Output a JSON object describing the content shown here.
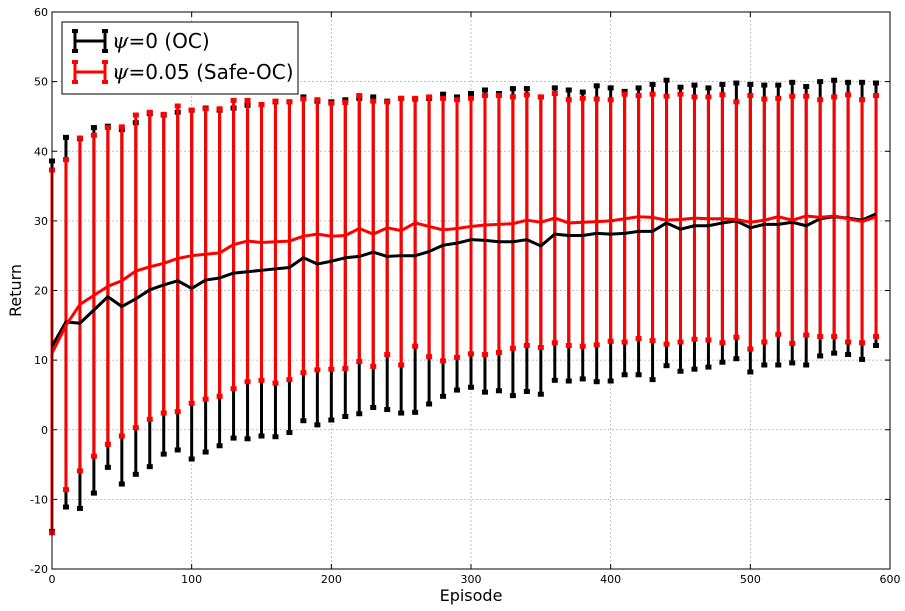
{
  "chart_data": {
    "type": "line",
    "xlabel": "Episode",
    "ylabel": "Return",
    "xlim": [
      0,
      600
    ],
    "ylim": [
      -20,
      60
    ],
    "x_ticks": [
      "0",
      "100",
      "200",
      "300",
      "400",
      "500",
      "600"
    ],
    "y_ticks": [
      "-20",
      "-10",
      "0",
      "10",
      "20",
      "30",
      "40",
      "50",
      "60"
    ],
    "grid": true,
    "legend_position": "top-left",
    "x": [
      0,
      10,
      20,
      30,
      40,
      50,
      60,
      70,
      80,
      90,
      100,
      110,
      120,
      130,
      140,
      150,
      160,
      170,
      180,
      190,
      200,
      210,
      220,
      230,
      240,
      250,
      260,
      270,
      280,
      290,
      300,
      310,
      320,
      330,
      340,
      350,
      360,
      370,
      380,
      390,
      400,
      410,
      420,
      430,
      440,
      450,
      460,
      470,
      480,
      490,
      500,
      510,
      520,
      530,
      540,
      550,
      560,
      570,
      580,
      590
    ],
    "series": [
      {
        "name_symbol": "ψ",
        "name": "=0 (OC)",
        "color": "#000000",
        "mean": [
          12.0,
          15.5,
          15.3,
          17.2,
          19.1,
          17.7,
          18.8,
          20.1,
          20.8,
          21.4,
          20.3,
          21.5,
          21.8,
          22.5,
          22.7,
          22.9,
          23.1,
          23.3,
          24.7,
          23.8,
          24.2,
          24.7,
          24.9,
          25.5,
          24.9,
          25.0,
          25.0,
          25.6,
          26.5,
          26.8,
          27.3,
          27.2,
          27.0,
          27.0,
          27.3,
          26.4,
          28.1,
          27.9,
          27.9,
          28.2,
          28.1,
          28.2,
          28.5,
          28.5,
          29.7,
          28.8,
          29.3,
          29.3,
          29.7,
          30.0,
          29.0,
          29.5,
          29.5,
          29.8,
          29.3,
          30.3,
          30.6,
          30.4,
          30.1,
          31.0
        ],
        "upper": [
          38.6,
          42.0,
          41.8,
          43.4,
          43.6,
          43.1,
          44.1,
          45.4,
          45.2,
          45.6,
          45.9,
          46.2,
          45.9,
          46.2,
          46.6,
          46.7,
          47.1,
          47.1,
          47.8,
          47.2,
          47.1,
          47.4,
          47.6,
          47.8,
          47.2,
          47.6,
          47.5,
          47.6,
          48.2,
          47.8,
          48.3,
          48.8,
          48.3,
          49.0,
          49.0,
          47.8,
          49.1,
          48.8,
          48.5,
          49.4,
          49.1,
          48.6,
          49.1,
          49.6,
          50.2,
          49.2,
          49.5,
          49.1,
          49.6,
          49.8,
          49.6,
          49.5,
          49.5,
          49.9,
          49.3,
          50.0,
          50.2,
          49.9,
          49.9,
          49.8
        ],
        "lower": [
          -14.6,
          -11.1,
          -11.3,
          -9.1,
          -5.4,
          -7.8,
          -6.4,
          -5.3,
          -3.5,
          -2.9,
          -4.2,
          -3.2,
          -2.3,
          -1.2,
          -1.3,
          -0.9,
          -1.0,
          -0.4,
          1.3,
          0.7,
          1.4,
          1.9,
          2.3,
          3.2,
          2.9,
          2.4,
          2.5,
          3.7,
          4.8,
          5.7,
          6.1,
          5.4,
          5.6,
          4.9,
          5.5,
          5.1,
          7.1,
          7.0,
          7.3,
          6.9,
          7.0,
          7.9,
          7.9,
          7.2,
          9.2,
          8.4,
          8.7,
          9.0,
          9.7,
          10.2,
          8.3,
          9.3,
          9.3,
          9.6,
          9.3,
          10.6,
          11.0,
          10.8,
          10.1,
          12.1
        ]
      },
      {
        "name_symbol": "ψ",
        "name": "=0.05 (Safe-OC)",
        "color": "#ff0000",
        "mean": [
          11.0,
          15.0,
          18.0,
          19.3,
          20.6,
          21.4,
          22.8,
          23.4,
          23.9,
          24.6,
          25.0,
          25.2,
          25.4,
          26.6,
          27.1,
          26.9,
          27.0,
          27.1,
          27.8,
          28.1,
          27.8,
          27.9,
          28.9,
          28.1,
          29.0,
          28.6,
          29.7,
          29.2,
          28.7,
          28.9,
          29.2,
          29.4,
          29.5,
          29.6,
          30.1,
          29.8,
          30.4,
          29.7,
          29.8,
          29.9,
          30.0,
          30.3,
          30.6,
          30.5,
          30.1,
          30.2,
          30.4,
          30.3,
          30.3,
          30.2,
          29.8,
          30.1,
          30.6,
          30.1,
          30.7,
          30.5,
          30.7,
          30.3,
          29.9,
          30.6
        ],
        "upper": [
          37.3,
          38.8,
          41.9,
          42.3,
          43.4,
          43.5,
          45.2,
          45.6,
          45.3,
          46.5,
          45.9,
          46.1,
          46.1,
          47.3,
          47.3,
          46.7,
          47.2,
          47.1,
          47.5,
          47.4,
          46.9,
          47.0,
          48.0,
          47.2,
          47.1,
          47.6,
          47.6,
          47.8,
          47.6,
          47.4,
          47.6,
          48.0,
          48.0,
          47.8,
          48.1,
          47.8,
          48.3,
          47.4,
          47.6,
          47.5,
          47.4,
          48.2,
          48.0,
          48.2,
          47.9,
          48.2,
          47.8,
          47.8,
          48.1,
          47.1,
          48.0,
          47.5,
          47.6,
          47.9,
          47.9,
          47.4,
          47.8,
          48.1,
          47.4,
          48.0
        ],
        "lower": [
          -14.8,
          -8.6,
          -5.9,
          -3.8,
          -2.1,
          -0.9,
          0.3,
          1.5,
          2.4,
          2.6,
          3.8,
          4.4,
          4.8,
          5.9,
          6.9,
          7.1,
          6.7,
          7.2,
          8.2,
          8.6,
          8.7,
          8.8,
          9.8,
          9.1,
          10.8,
          9.3,
          12.0,
          10.5,
          9.9,
          10.4,
          10.9,
          10.8,
          11.1,
          11.7,
          12.1,
          11.8,
          12.5,
          12.1,
          12.0,
          12.2,
          12.7,
          12.6,
          13.1,
          12.8,
          12.3,
          12.6,
          13.0,
          12.9,
          12.5,
          13.3,
          11.6,
          12.6,
          13.7,
          12.4,
          13.6,
          13.4,
          13.4,
          12.6,
          12.5,
          13.4
        ]
      }
    ]
  }
}
